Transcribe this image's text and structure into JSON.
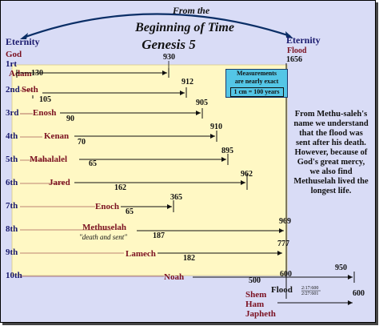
{
  "title": {
    "line1": "From the",
    "line2": "Beginning of Time",
    "line3": "Genesis 5"
  },
  "left_header": {
    "eternity": "Eternity",
    "god": "God"
  },
  "right_header": {
    "eternity": "Eternity",
    "flood": "Flood",
    "year": "1656"
  },
  "note": {
    "line1": "Measurements",
    "line2": "are nearly exact",
    "scale": "1 cm = 100 years"
  },
  "side_text": "From Methu-saleh's name we understand that the flood was sent after his death. However, because of God's great mercy, we also find Methuselah lived the longest life.",
  "generations": [
    {
      "ordinal": "1rt",
      "name": "Adam",
      "begat": "130",
      "lifespan": "930"
    },
    {
      "ordinal": "2nd",
      "name": "Seth",
      "begat": "105",
      "lifespan": "912"
    },
    {
      "ordinal": "3rd",
      "name": "Enosh",
      "begat": "90",
      "lifespan": "905"
    },
    {
      "ordinal": "4th",
      "name": "Kenan",
      "begat": "70",
      "lifespan": "910"
    },
    {
      "ordinal": "5th",
      "name": "Mahalalel",
      "begat": "65",
      "lifespan": "895"
    },
    {
      "ordinal": "6th",
      "name": "Jared",
      "begat": "162",
      "lifespan": "962"
    },
    {
      "ordinal": "7th",
      "name": "Enoch",
      "begat": "65",
      "lifespan": "365"
    },
    {
      "ordinal": "8th",
      "name": "Methuselah",
      "subtitle": "\"death and sent\"",
      "begat": "187",
      "lifespan": "969"
    },
    {
      "ordinal": "9th",
      "name": "Lamech",
      "begat": "182",
      "lifespan": "777"
    },
    {
      "ordinal": "10th",
      "name": "Noah",
      "begat": "500",
      "lifespan": "950"
    }
  ],
  "flood_row": {
    "noah_at_flood": "600",
    "flood_label": "Flood",
    "date1": "2:17:600",
    "date2": "2/27:601",
    "end_value": "600"
  },
  "sons": [
    "Shem",
    "Ham",
    "Japheth"
  ],
  "colors": {
    "background": "#d9dcf6",
    "timeline_panel": "#fff8c4",
    "name_color": "#7a1020",
    "note_box": "#54c6e6"
  }
}
